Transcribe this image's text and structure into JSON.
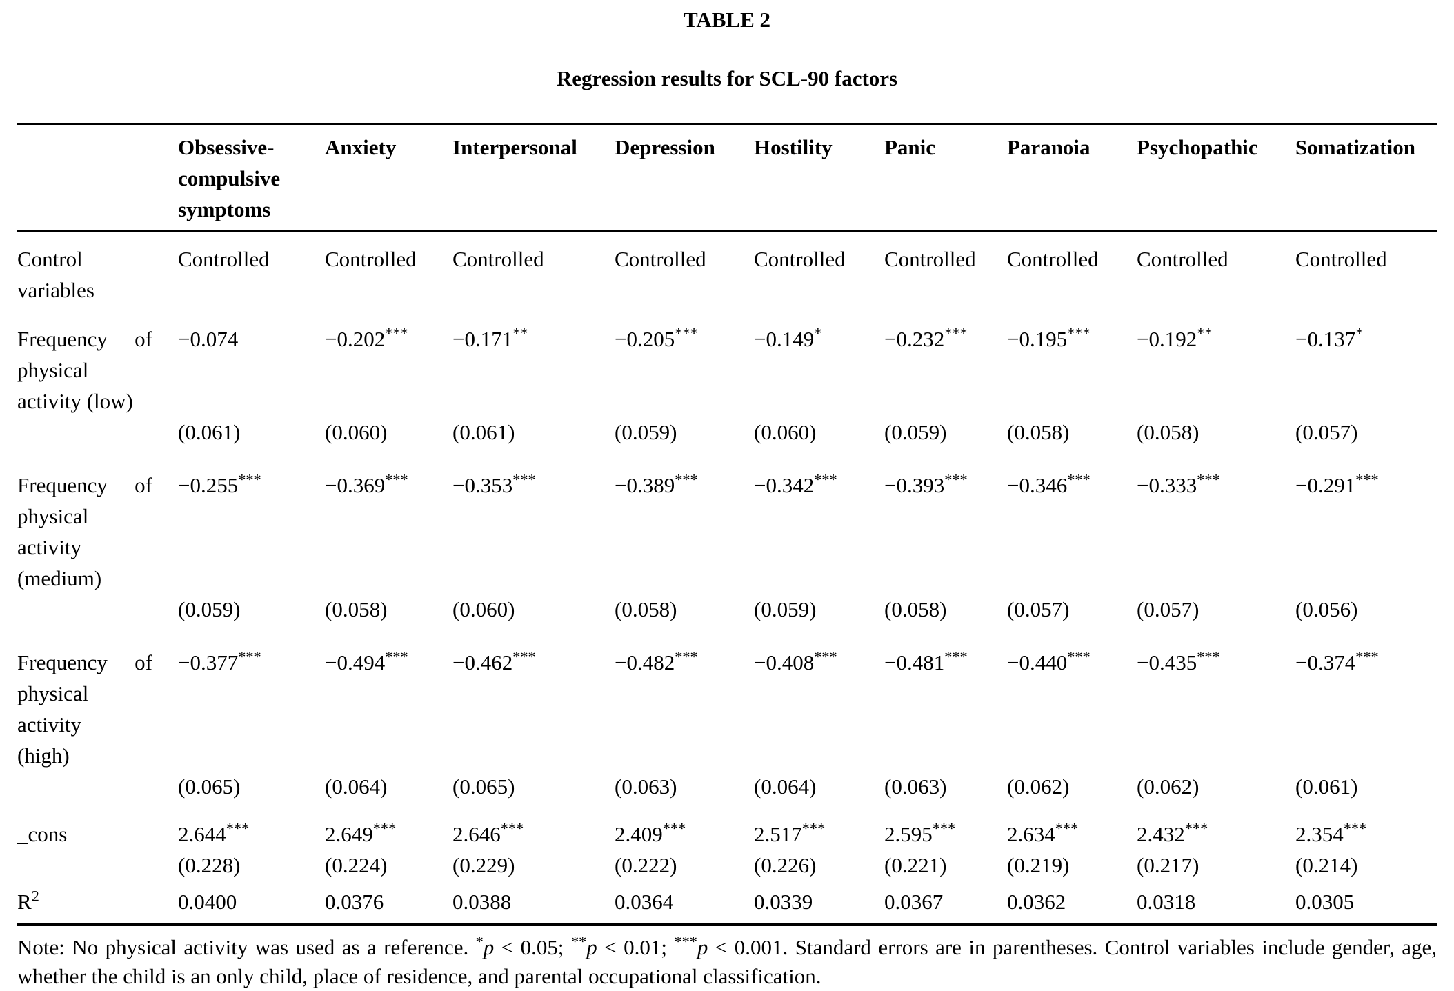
{
  "page": {
    "background": "#ffffff",
    "text_color": "#000000"
  },
  "title": "TABLE 2",
  "subtitle": "Regression results for SCL-90 factors",
  "table": {
    "columns": [
      "Obsessive-compulsive symptoms",
      "Anxiety",
      "Interpersonal",
      "Depression",
      "Hostility",
      "Panic",
      "Paranoia",
      "Psychopathic",
      "Somatization"
    ],
    "rows": [
      {
        "kind": "control",
        "label_lines": [
          "Control",
          "variables"
        ],
        "values": [
          "Controlled",
          "Controlled",
          "Controlled",
          "Controlled",
          "Controlled",
          "Controlled",
          "Controlled",
          "Controlled",
          "Controlled"
        ]
      },
      {
        "kind": "coef",
        "label_lines": [
          "Frequency of",
          "physical",
          "activity (low)"
        ],
        "values": [
          "−0.074",
          "−0.202***",
          "−0.171**",
          "−0.205***",
          "−0.149*",
          "−0.232***",
          "−0.195***",
          "−0.192**",
          "−0.137*"
        ]
      },
      {
        "kind": "se",
        "label_lines": [],
        "values": [
          "(0.061)",
          "(0.060)",
          "(0.061)",
          "(0.059)",
          "(0.060)",
          "(0.059)",
          "(0.058)",
          "(0.058)",
          "(0.057)"
        ]
      },
      {
        "kind": "coef",
        "label_lines": [
          "Frequency of",
          "physical",
          "activity",
          "(medium)"
        ],
        "values": [
          "−0.255***",
          "−0.369***",
          "−0.353***",
          "−0.389***",
          "−0.342***",
          "−0.393***",
          "−0.346***",
          "−0.333***",
          "−0.291***"
        ]
      },
      {
        "kind": "se",
        "label_lines": [],
        "values": [
          "(0.059)",
          "(0.058)",
          "(0.060)",
          "(0.058)",
          "(0.059)",
          "(0.058)",
          "(0.057)",
          "(0.057)",
          "(0.056)"
        ]
      },
      {
        "kind": "coef",
        "label_lines": [
          "Frequency of",
          "physical",
          "activity",
          "(high)"
        ],
        "values": [
          "−0.377***",
          "−0.494***",
          "−0.462***",
          "−0.482***",
          "−0.408***",
          "−0.481***",
          "−0.440***",
          "−0.435***",
          "−0.374***"
        ]
      },
      {
        "kind": "se",
        "label_lines": [],
        "values": [
          "(0.065)",
          "(0.064)",
          "(0.065)",
          "(0.063)",
          "(0.064)",
          "(0.063)",
          "(0.062)",
          "(0.062)",
          "(0.061)"
        ]
      },
      {
        "kind": "cons",
        "label_lines": [
          "_cons"
        ],
        "values": [
          "2.644***",
          "2.649***",
          "2.646***",
          "2.409***",
          "2.517***",
          "2.595***",
          "2.634***",
          "2.432***",
          "2.354***"
        ]
      },
      {
        "kind": "selast",
        "label_lines": [],
        "values": [
          "(0.228)",
          "(0.224)",
          "(0.229)",
          "(0.222)",
          "(0.226)",
          "(0.221)",
          "(0.219)",
          "(0.217)",
          "(0.214)"
        ]
      },
      {
        "kind": "r2",
        "label_lines": [
          "R"
        ],
        "label_sup": "2",
        "values": [
          "0.0400",
          "0.0376",
          "0.0388",
          "0.0364",
          "0.0339",
          "0.0367",
          "0.0362",
          "0.0318",
          "0.0305"
        ]
      }
    ]
  },
  "note": {
    "segments": [
      {
        "text": "Note: No physical activity was used as a reference. ",
        "style": "plain"
      },
      {
        "text": "*",
        "style": "sup"
      },
      {
        "text": "p",
        "style": "italic"
      },
      {
        "text": " < 0.05; ",
        "style": "plain"
      },
      {
        "text": "**",
        "style": "sup"
      },
      {
        "text": "p",
        "style": "italic"
      },
      {
        "text": " < 0.01; ",
        "style": "plain"
      },
      {
        "text": "***",
        "style": "sup"
      },
      {
        "text": "p",
        "style": "italic"
      },
      {
        "text": " < 0.001. Standard errors are in parentheses. Control variables include gender, age, whether the child is an only child, place of residence, and parental occupational classification.",
        "style": "plain"
      }
    ]
  }
}
